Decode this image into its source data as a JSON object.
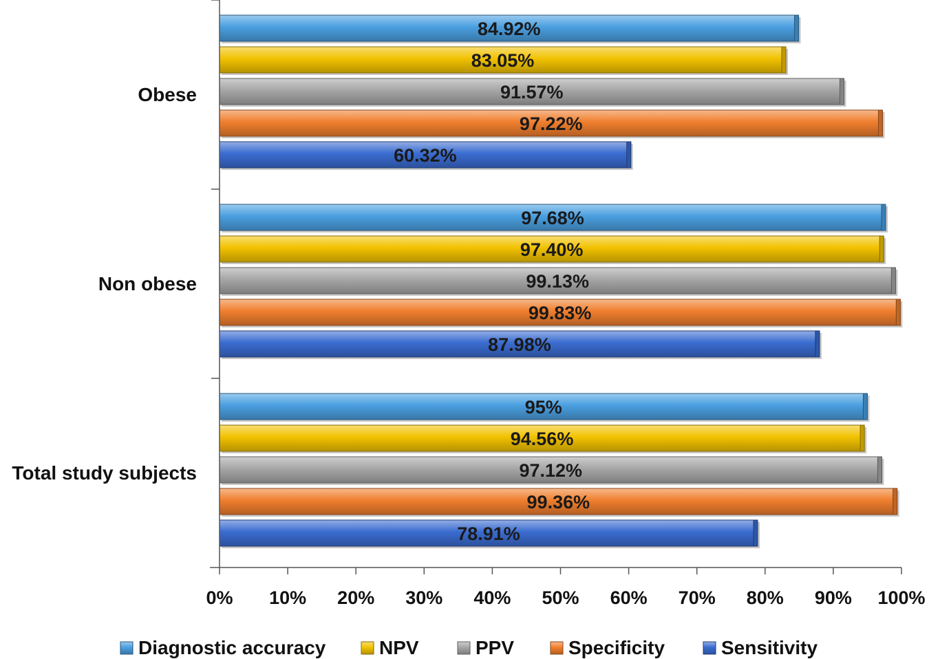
{
  "chart_data": {
    "type": "bar",
    "orientation": "horizontal",
    "categories": [
      "Obese",
      "Non obese",
      "Total study subjects"
    ],
    "series": [
      {
        "name": "Diagnostic accuracy",
        "color": "#4a9fe0",
        "values": [
          84.92,
          97.68,
          95
        ],
        "labels": [
          "84.92%",
          "97.68%",
          "95%"
        ]
      },
      {
        "name": "NPV",
        "color": "#f2c200",
        "values": [
          83.05,
          97.4,
          94.56
        ],
        "labels": [
          "83.05%",
          "97.40%",
          "94.56%"
        ]
      },
      {
        "name": "PPV",
        "color": "#a6a6a6",
        "values": [
          91.57,
          99.13,
          97.12
        ],
        "labels": [
          "91.57%",
          "99.13%",
          "97.12%"
        ]
      },
      {
        "name": "Specificity",
        "color": "#f07f2e",
        "values": [
          97.22,
          99.83,
          99.36
        ],
        "labels": [
          "97.22%",
          "99.83%",
          "99.36%"
        ]
      },
      {
        "name": "Sensitivity",
        "color": "#3a6cd0",
        "values": [
          60.32,
          87.98,
          78.91
        ],
        "labels": [
          "60.32%",
          "87.98%",
          "78.91%"
        ]
      }
    ],
    "xlim": [
      0,
      100
    ],
    "xticks": [
      "0%",
      "10%",
      "20%",
      "30%",
      "40%",
      "50%",
      "60%",
      "70%",
      "80%",
      "90%",
      "100%"
    ],
    "title": "",
    "xlabel": "",
    "ylabel": "",
    "grid": false,
    "legend_position": "bottom"
  }
}
